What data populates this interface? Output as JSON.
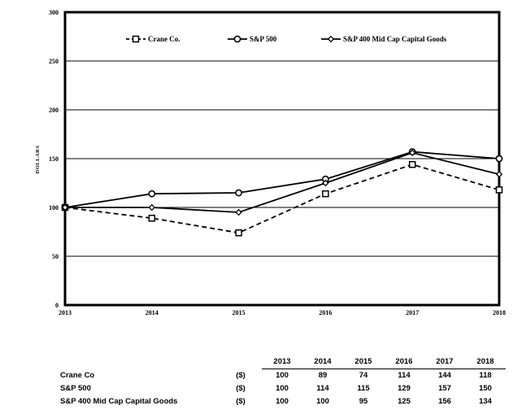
{
  "chart_data": {
    "type": "line",
    "title": "",
    "xlabel": "",
    "ylabel": "DOLLARS",
    "x": [
      "2013",
      "2014",
      "2015",
      "2016",
      "2017",
      "2018"
    ],
    "ylim": [
      0,
      300
    ],
    "yticks": [
      0,
      50,
      100,
      150,
      200,
      250,
      300
    ],
    "grid": "horizontal",
    "legend_placement": "top",
    "series": [
      {
        "name": "Crane Co.",
        "values": [
          100,
          89,
          74,
          114,
          144,
          118
        ],
        "style": "dashed",
        "marker": "square",
        "color": "#000000"
      },
      {
        "name": "S&P 500",
        "values": [
          100,
          114,
          115,
          129,
          157,
          150
        ],
        "style": "solid",
        "marker": "circle",
        "color": "#000000"
      },
      {
        "name": "S&P 400 Mid Cap Capital Goods",
        "values": [
          100,
          100,
          95,
          125,
          156,
          134
        ],
        "style": "solid",
        "marker": "diamond",
        "color": "#000000"
      }
    ]
  },
  "table": {
    "headers": [
      "2013",
      "2014",
      "2015",
      "2016",
      "2017",
      "2018"
    ],
    "rows": [
      {
        "name": "Crane Co",
        "currency": "($)",
        "values": [
          "100",
          "89",
          "74",
          "114",
          "144",
          "118"
        ]
      },
      {
        "name": "S&P 500",
        "currency": "($)",
        "values": [
          "100",
          "114",
          "115",
          "129",
          "157",
          "150"
        ]
      },
      {
        "name": "S&P 400 Mid Cap Capital Goods",
        "currency": "($)",
        "values": [
          "100",
          "100",
          "95",
          "125",
          "156",
          "134"
        ]
      }
    ]
  }
}
